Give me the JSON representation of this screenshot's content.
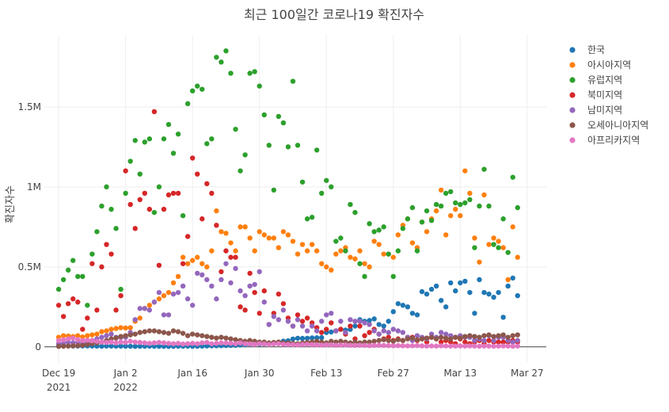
{
  "chart_data": {
    "type": "scatter",
    "title": "최근 100일간 코로나19 확진자수",
    "xlabel": "",
    "ylabel": "확진자수",
    "x_range": [
      "2021-12-16",
      "2022-03-31"
    ],
    "ylim": [
      -100000,
      1950000
    ],
    "x_ticks": [
      {
        "date": "2021-12-19",
        "label": "Dec 19",
        "sub": "2021"
      },
      {
        "date": "2022-01-02",
        "label": "Jan 2",
        "sub": "2022"
      },
      {
        "date": "2022-01-16",
        "label": "Jan 16",
        "sub": ""
      },
      {
        "date": "2022-01-30",
        "label": "Jan 30",
        "sub": ""
      },
      {
        "date": "2022-02-13",
        "label": "Feb 13",
        "sub": ""
      },
      {
        "date": "2022-02-27",
        "label": "Feb 27",
        "sub": ""
      },
      {
        "date": "2022-03-13",
        "label": "Mar 13",
        "sub": ""
      },
      {
        "date": "2022-03-27",
        "label": "Mar 27",
        "sub": ""
      }
    ],
    "y_ticks": [
      {
        "value": 0,
        "label": "0"
      },
      {
        "value": 500000,
        "label": "0.5M"
      },
      {
        "value": 1000000,
        "label": "1M"
      },
      {
        "value": 1500000,
        "label": "1.5M"
      }
    ],
    "grid": true,
    "legend_position": "right",
    "x_start": "2021-12-19",
    "x_step_days": 1,
    "series": [
      {
        "name": "한국",
        "color": "#1f77b4",
        "values": [
          5300,
          6200,
          5600,
          5400,
          5200,
          5800,
          5900,
          5400,
          4900,
          4200,
          5400,
          5100,
          4500,
          4900,
          4300,
          3800,
          3000,
          3700,
          3800,
          4400,
          4000,
          3700,
          3300,
          3100,
          3700,
          4200,
          4100,
          4400,
          3700,
          3800,
          4700,
          5800,
          6600,
          7000,
          7500,
          8500,
          9000,
          10000,
          12000,
          14000,
          16000,
          18000,
          17000,
          17500,
          20000,
          22000,
          27000,
          36000,
          38000,
          49000,
          54000,
          53000,
          54000,
          56000,
          57000,
          58000,
          90000,
          93000,
          100000,
          110000,
          105000,
          109000,
          130000,
          170000,
          160000,
          165000,
          175000,
          140000,
          130000,
          160000,
          220000,
          270000,
          260000,
          250000,
          210000,
          200000,
          345000,
          330000,
          360000,
          380000,
          290000,
          250000,
          400000,
          350000,
          400000,
          410000,
          340000,
          210000,
          420000,
          340000,
          330000,
          310000,
          340000,
          185000,
          380000,
          430000,
          320000
        ]
      },
      {
        "name": "아시아지역",
        "color": "#ff7f0e",
        "values": [
          60000,
          70000,
          68000,
          65000,
          70000,
          62000,
          70000,
          75000,
          80000,
          95000,
          100000,
          110000,
          115000,
          120000,
          118000,
          120000,
          160000,
          180000,
          240000,
          260000,
          280000,
          300000,
          320000,
          340000,
          400000,
          440000,
          560000,
          520000,
          540000,
          560000,
          520000,
          500000,
          600000,
          850000,
          720000,
          710000,
          650000,
          600000,
          750000,
          750000,
          680000,
          600000,
          720000,
          700000,
          680000,
          680000,
          620000,
          720000,
          700000,
          660000,
          580000,
          640000,
          600000,
          640000,
          600000,
          520000,
          500000,
          480000,
          580000,
          600000,
          620000,
          560000,
          550000,
          600000,
          520000,
          500000,
          660000,
          640000,
          580000,
          580000,
          560000,
          700000,
          760000,
          800000,
          650000,
          620000,
          780000,
          720000,
          800000,
          850000,
          980000,
          700000,
          820000,
          860000,
          820000,
          1100000,
          960000,
          680000,
          530000,
          950000,
          640000,
          680000,
          660000,
          620000,
          420000,
          750000,
          560000
        ]
      },
      {
        "name": "유럽지역",
        "color": "#2ca02c",
        "values": [
          360000,
          420000,
          480000,
          540000,
          440000,
          440000,
          260000,
          580000,
          720000,
          880000,
          1000000,
          860000,
          740000,
          360000,
          960000,
          1160000,
          1290000,
          1080000,
          1280000,
          1300000,
          840000,
          1000000,
          1300000,
          1390000,
          1210000,
          1330000,
          820000,
          1520000,
          1600000,
          1630000,
          1610000,
          1270000,
          1300000,
          1810000,
          1780000,
          1850000,
          1710000,
          1360000,
          1100000,
          1200000,
          1710000,
          1720000,
          1630000,
          1450000,
          1260000,
          980000,
          1440000,
          1400000,
          1250000,
          1660000,
          1260000,
          1030000,
          800000,
          810000,
          1230000,
          960000,
          1040000,
          1000000,
          660000,
          680000,
          600000,
          890000,
          840000,
          520000,
          440000,
          770000,
          720000,
          730000,
          750000,
          580000,
          440000,
          600000,
          740000,
          800000,
          870000,
          600000,
          780000,
          850000,
          790000,
          890000,
          880000,
          960000,
          970000,
          900000,
          890000,
          900000,
          920000,
          620000,
          880000,
          1110000,
          880000,
          640000,
          620000,
          800000,
          590000,
          1060000,
          870000
        ]
      },
      {
        "name": "북미지역",
        "color": "#d62728",
        "values": [
          260000,
          190000,
          270000,
          300000,
          280000,
          110000,
          180000,
          520000,
          230000,
          500000,
          640000,
          580000,
          230000,
          320000,
          1100000,
          890000,
          740000,
          920000,
          960000,
          860000,
          1470000,
          510000,
          860000,
          950000,
          960000,
          960000,
          520000,
          690000,
          1180000,
          1080000,
          800000,
          1020000,
          960000,
          760000,
          470000,
          600000,
          560000,
          560000,
          250000,
          230000,
          460000,
          340000,
          210000,
          350000,
          140000,
          210000,
          330000,
          270000,
          180000,
          130000,
          200000,
          160000,
          180000,
          150000,
          120000,
          90000,
          110000,
          150000,
          100000,
          110000,
          80000,
          130000,
          50000,
          130000,
          70000,
          90000,
          110000,
          80000,
          50000,
          60000,
          40000,
          50000,
          40000,
          60000,
          60000,
          40000,
          50000,
          30000,
          60000,
          50000,
          30000,
          40000,
          30000,
          20000,
          50000,
          30000,
          20000,
          30000,
          40000,
          20000,
          40000,
          30000,
          30000,
          30000,
          30000,
          40000,
          30000
        ]
      },
      {
        "name": "남미지역",
        "color": "#9467bd",
        "values": [
          20000,
          22000,
          30000,
          25000,
          30000,
          20000,
          25000,
          40000,
          50000,
          60000,
          70000,
          80000,
          60000,
          60000,
          60000,
          90000,
          170000,
          240000,
          240000,
          230000,
          280000,
          340000,
          200000,
          200000,
          330000,
          340000,
          380000,
          300000,
          260000,
          460000,
          450000,
          420000,
          380000,
          300000,
          420000,
          520000,
          400000,
          490000,
          350000,
          320000,
          380000,
          390000,
          470000,
          280000,
          140000,
          190000,
          170000,
          230000,
          160000,
          130000,
          170000,
          130000,
          100000,
          130000,
          100000,
          160000,
          200000,
          210000,
          100000,
          160000,
          90000,
          170000,
          160000,
          160000,
          150000,
          140000,
          100000,
          80000,
          100000,
          90000,
          110000,
          100000,
          90000,
          60000,
          40000,
          70000,
          60000,
          50000,
          80000,
          60000,
          90000,
          80000,
          70000,
          60000,
          70000,
          60000,
          60000,
          40000,
          50000,
          40000,
          70000,
          40000,
          60000,
          60000,
          40000,
          30000,
          40000
        ]
      },
      {
        "name": "오세아니아지역",
        "color": "#8c564b",
        "values": [
          3000,
          4000,
          5000,
          6000,
          8000,
          10000,
          15000,
          20000,
          25000,
          30000,
          40000,
          50000,
          55000,
          65000,
          70000,
          75000,
          80000,
          90000,
          95000,
          100000,
          100000,
          95000,
          90000,
          85000,
          100000,
          95000,
          85000,
          70000,
          80000,
          75000,
          70000,
          65000,
          60000,
          55000,
          60000,
          55000,
          50000,
          45000,
          40000,
          35000,
          40000,
          35000,
          30000,
          30000,
          25000,
          28000,
          30000,
          25000,
          25000,
          22000,
          20000,
          25000,
          28000,
          30000,
          35000,
          30000,
          25000,
          35000,
          30000,
          35000,
          30000,
          25000,
          30000,
          25000,
          30000,
          30000,
          35000,
          40000,
          45000,
          40000,
          35000,
          45000,
          40000,
          50000,
          55000,
          45000,
          50000,
          55000,
          60000,
          50000,
          60000,
          55000,
          50000,
          60000,
          55000,
          65000,
          70000,
          65000,
          60000,
          70000,
          75000,
          65000,
          70000,
          75000,
          60000,
          70000,
          75000
        ]
      },
      {
        "name": "아프리카지역",
        "color": "#e377c2",
        "values": [
          40000,
          45000,
          50000,
          55000,
          45000,
          40000,
          42000,
          38000,
          35000,
          30000,
          28000,
          30000,
          25000,
          30000,
          28000,
          35000,
          30000,
          28000,
          25000,
          22000,
          25000,
          28000,
          25000,
          22000,
          20000,
          22000,
          18000,
          20000,
          22000,
          20000,
          25000,
          28000,
          20000,
          22000,
          25000,
          24000,
          22000,
          20000,
          25000,
          20000,
          18000,
          16000,
          20000,
          18000,
          15000,
          18000,
          20000,
          16000,
          15000,
          14000,
          12000,
          15000,
          16000,
          14000,
          12000,
          11000,
          13000,
          12000,
          10000,
          11000,
          12000,
          10000,
          9000,
          10000,
          9000,
          8000,
          9000,
          10000,
          9000,
          8000,
          7000,
          8000,
          7000,
          6000,
          7000,
          8000,
          6000,
          5000,
          6000,
          5000,
          7000,
          6000,
          5000,
          5000,
          6000,
          5000,
          6000,
          5000,
          4000,
          5000,
          5000,
          4000,
          5000,
          6000,
          5000,
          4000,
          5000
        ]
      }
    ]
  }
}
